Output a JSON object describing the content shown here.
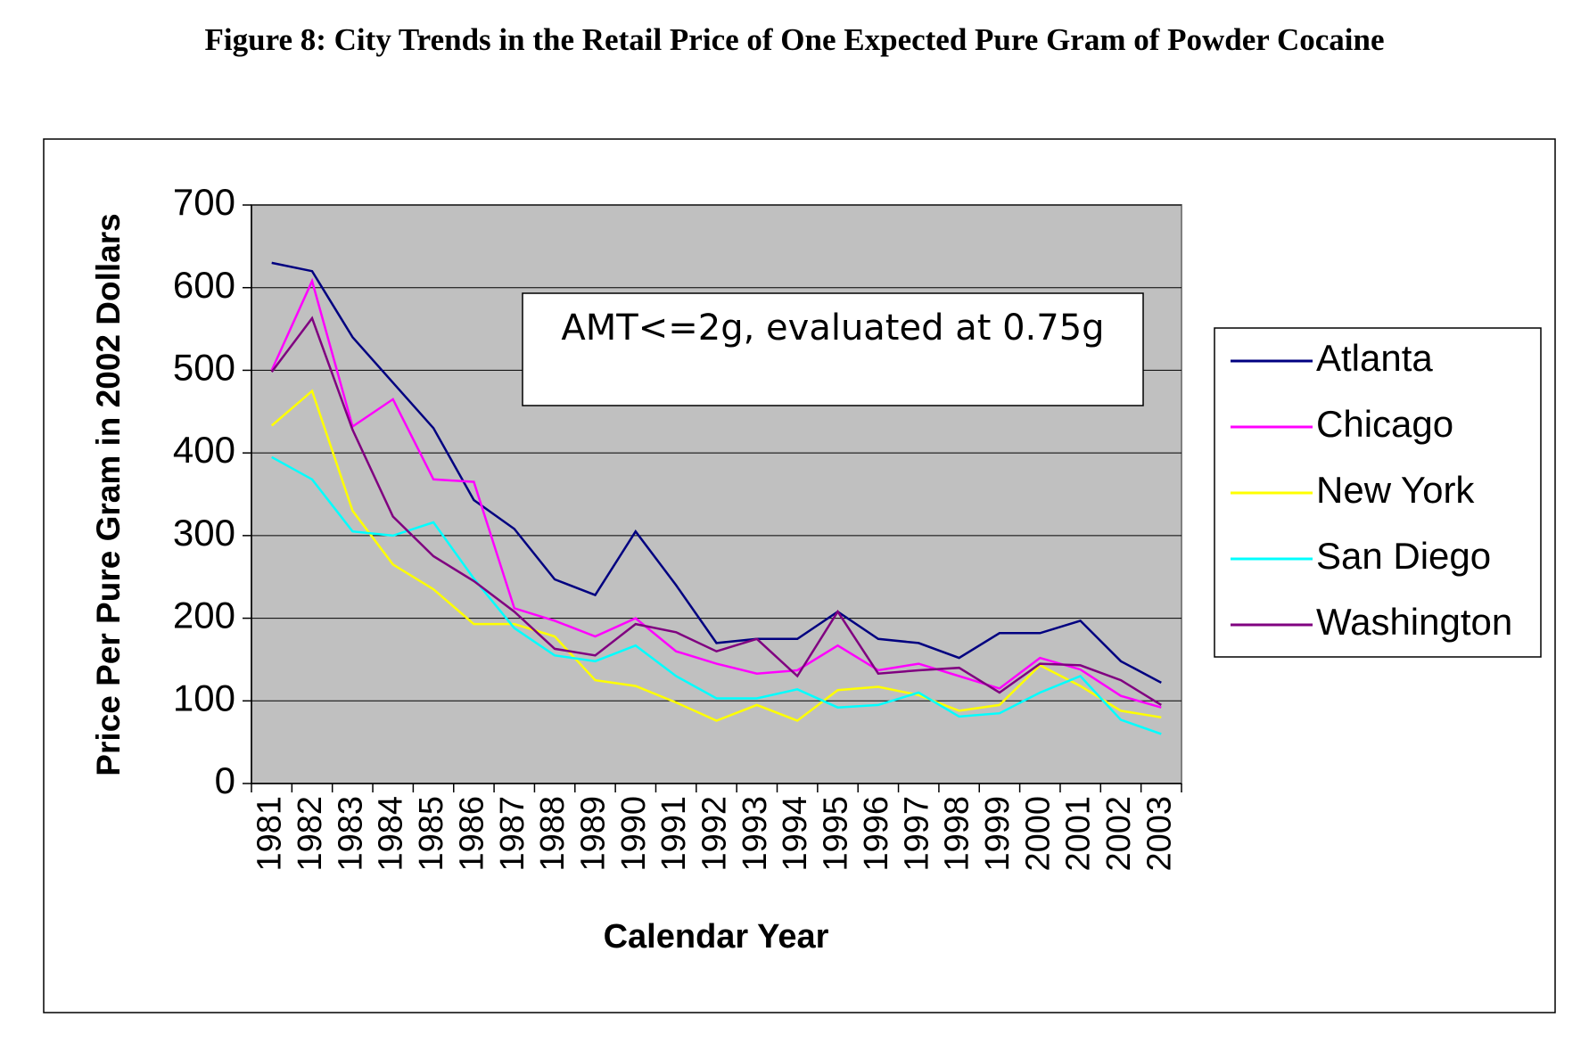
{
  "chart_data": {
    "type": "line",
    "title": "Figure 8:  City Trends in the Retail Price of One Expected Pure Gram of Powder Cocaine",
    "annotation": "AMT<=2g, evaluated at 0.75g",
    "y_label": "Price Per Pure Gram in 2002 Dollars",
    "x_label": "Calendar Year",
    "categories": [
      "1981",
      "1982",
      "1983",
      "1984",
      "1985",
      "1986",
      "1987",
      "1988",
      "1989",
      "1990",
      "1991",
      "1992",
      "1993",
      "1994",
      "1995",
      "1996",
      "1997",
      "1998",
      "1999",
      "2000",
      "2001",
      "2002",
      "2003"
    ],
    "series": [
      {
        "name": "Atlanta",
        "color": "#000080",
        "values": [
          630,
          620,
          540,
          485,
          430,
          343,
          308,
          247,
          228,
          305,
          240,
          170,
          175,
          175,
          208,
          175,
          170,
          152,
          182,
          182,
          197,
          148,
          122
        ]
      },
      {
        "name": "Chicago",
        "color": "#ff00ff",
        "values": [
          500,
          608,
          432,
          465,
          368,
          365,
          212,
          197,
          178,
          200,
          160,
          145,
          133,
          137,
          167,
          137,
          145,
          130,
          115,
          152,
          138,
          106,
          92
        ]
      },
      {
        "name": "New York",
        "color": "#ffff00",
        "values": [
          433,
          475,
          330,
          265,
          235,
          193,
          193,
          178,
          125,
          118,
          98,
          76,
          95,
          76,
          113,
          117,
          107,
          88,
          95,
          143,
          118,
          88,
          80
        ]
      },
      {
        "name": "San Diego",
        "color": "#00ffff",
        "values": [
          395,
          368,
          305,
          300,
          316,
          248,
          188,
          155,
          148,
          167,
          130,
          103,
          103,
          114,
          92,
          95,
          110,
          81,
          85,
          110,
          130,
          77,
          60
        ]
      },
      {
        "name": "Washington",
        "color": "#800080",
        "values": [
          498,
          563,
          428,
          323,
          275,
          245,
          208,
          163,
          155,
          193,
          183,
          160,
          175,
          130,
          208,
          133,
          137,
          140,
          110,
          145,
          143,
          125,
          95
        ]
      }
    ],
    "ylim": [
      0,
      700
    ],
    "yticks": [
      0,
      100,
      200,
      300,
      400,
      500,
      600,
      700
    ],
    "grid": true,
    "legend": "right",
    "plot_background": "#c0c0c0"
  }
}
